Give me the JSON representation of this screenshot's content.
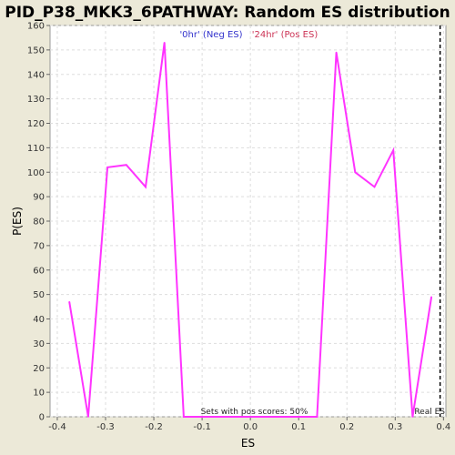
{
  "chart_data": {
    "type": "line",
    "title": "PID_P38_MKK3_6PATHWAY: Random ES distribution",
    "xlabel": "ES",
    "ylabel": "P(ES)",
    "xlim": [
      -0.415,
      0.405
    ],
    "ylim": [
      0,
      160
    ],
    "x_ticks": [
      -0.4,
      -0.3,
      -0.2,
      -0.1,
      0.0,
      0.1,
      0.2,
      0.3,
      0.4
    ],
    "x_tick_labels": [
      "-0.4",
      "-0.3",
      "-0.2",
      "-0.1",
      "0.0",
      "0.1",
      "0.2",
      "0.3",
      "0.4"
    ],
    "y_ticks": [
      0,
      10,
      20,
      30,
      40,
      50,
      60,
      70,
      80,
      90,
      100,
      110,
      120,
      130,
      140,
      150,
      160
    ],
    "y_tick_labels": [
      "0",
      "10",
      "20",
      "30",
      "40",
      "50",
      "60",
      "70",
      "80",
      "90",
      "100",
      "110",
      "120",
      "130",
      "140",
      "150",
      "160"
    ],
    "grid": true,
    "series": [
      {
        "color": "#ff33ff",
        "x": [
          -0.375,
          -0.336,
          -0.296,
          -0.257,
          -0.217,
          -0.178,
          -0.138,
          -0.099,
          -0.059,
          -0.02,
          0.02,
          0.059,
          0.099,
          0.138,
          0.178,
          0.217,
          0.257,
          0.296,
          0.336,
          0.375
        ],
        "y": [
          47,
          0,
          102,
          103,
          94,
          153,
          0,
          0,
          0,
          0,
          0,
          0,
          0,
          0,
          149,
          100,
          94,
          109,
          0,
          49
        ]
      }
    ],
    "legend": [
      {
        "label": "'0hr' (Neg ES)",
        "color": "#3333cc"
      },
      {
        "label": "'24hr' (Pos ES)",
        "color": "#cc3355"
      }
    ],
    "legend_placement": "top-center",
    "real_es": {
      "x": 0.393,
      "label": "Real ES"
    },
    "annotation": "Sets with pos scores: 50%"
  }
}
